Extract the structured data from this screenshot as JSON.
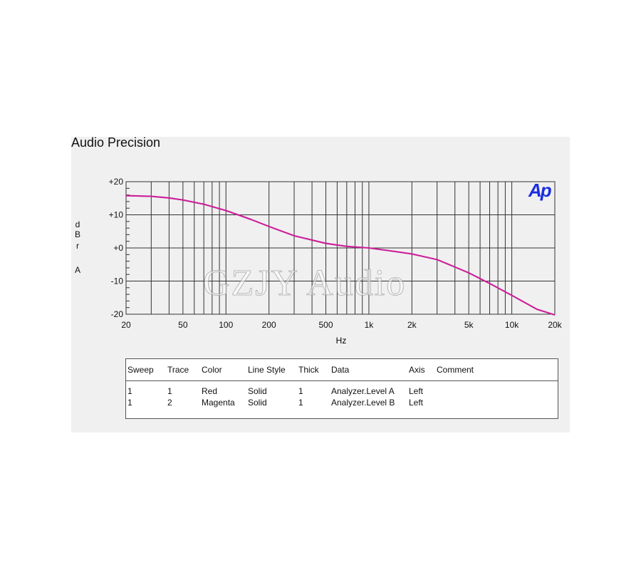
{
  "title": "Audio Precision",
  "logo_text": "Ap",
  "watermark": "GZJY Audio",
  "colors": {
    "trace": "#cc1f99",
    "grid": "#333333",
    "logo": "#1a2ee0",
    "background": "#f0f0f0"
  },
  "chart_data": {
    "type": "line",
    "xscale": "log",
    "xlim": [
      20,
      20000
    ],
    "ylim": [
      -20,
      20
    ],
    "xlabel": "Hz",
    "ylabel": "dBr A",
    "ylabel_lines": [
      "d",
      "B",
      "r",
      "",
      "A"
    ],
    "xticks": [
      "20",
      "50",
      "100",
      "200",
      "500",
      "1k",
      "2k",
      "5k",
      "10k",
      "20k"
    ],
    "yticks": [
      "+20",
      "+10",
      "+0",
      "-10",
      "-20"
    ],
    "grid": true,
    "series": [
      {
        "name": "Analyzer.Level A",
        "x": [
          20,
          30,
          40,
          50,
          70,
          100,
          150,
          200,
          300,
          500,
          700,
          1000,
          1500,
          2000,
          3000,
          5000,
          7000,
          10000,
          15000,
          20000
        ],
        "y": [
          15.8,
          15.6,
          15.1,
          14.5,
          13.2,
          11.3,
          8.6,
          6.5,
          3.7,
          1.4,
          0.5,
          0,
          -1.0,
          -1.8,
          -3.5,
          -7.5,
          -10.7,
          -14.3,
          -18.5,
          -20.2
        ]
      },
      {
        "name": "Analyzer.Level B",
        "x": [
          20,
          30,
          40,
          50,
          70,
          100,
          150,
          200,
          300,
          500,
          700,
          1000,
          1500,
          2000,
          3000,
          5000,
          7000,
          10000,
          15000,
          20000
        ],
        "y": [
          15.7,
          15.5,
          15.0,
          14.4,
          13.1,
          11.2,
          8.5,
          6.4,
          3.6,
          1.3,
          0.4,
          0,
          -1.1,
          -1.9,
          -3.6,
          -7.6,
          -10.8,
          -14.4,
          -18.6,
          -20.3
        ]
      }
    ]
  },
  "legend": {
    "headers": [
      "Sweep",
      "Trace",
      "Color",
      "Line Style",
      "Thick",
      "Data",
      "Axis",
      "Comment"
    ],
    "rows": [
      [
        "1",
        "1",
        "Red",
        "Solid",
        "1",
        "Analyzer.Level A",
        "Left",
        ""
      ],
      [
        "1",
        "2",
        "Magenta",
        "Solid",
        "1",
        "Analyzer.Level B",
        "Left",
        ""
      ]
    ]
  }
}
